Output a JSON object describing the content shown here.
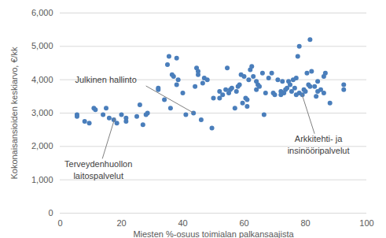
{
  "chart_data": {
    "type": "scatter",
    "x_label": "Miesten %-osuus toimialan palkansaajista",
    "y_label": "Kokonaisansioiden keskiarvo, €/kk",
    "color": "#4a7ebb",
    "marker": "circle",
    "grid": true,
    "xlim": [
      0,
      100
    ],
    "xticks": [
      0,
      20,
      40,
      60,
      80,
      100
    ],
    "ylim": [
      0,
      6000
    ],
    "yticks": [
      0,
      1000,
      2000,
      3000,
      4000,
      5000,
      6000
    ],
    "x": [
      5.5,
      5.5,
      8,
      9.5,
      11,
      11.5,
      14,
      15,
      16,
      17.5,
      18.5,
      20,
      21.5,
      21.5,
      25,
      26,
      27,
      28.5,
      28,
      32,
      32,
      34,
      35,
      35.5,
      36,
      36.5,
      37,
      38,
      38,
      38.5,
      40,
      41,
      43.5,
      44,
      44.5,
      45,
      45,
      46,
      46.5,
      47,
      48,
      49.5,
      50,
      52,
      52,
      53,
      54,
      54.5,
      55,
      55.5,
      56,
      57,
      57.5,
      58,
      58.5,
      59,
      59.5,
      60,
      60.5,
      61,
      61,
      61.5,
      62,
      62.5,
      63,
      64,
      64,
      64.5,
      65,
      66,
      66.5,
      67,
      68,
      69,
      69.5,
      70,
      71,
      72,
      72,
      72.5,
      73,
      73.5,
      74,
      74.5,
      75,
      75.5,
      76,
      76.5,
      77,
      77,
      77.5,
      78,
      78,
      79,
      79.5,
      80,
      80.5,
      81,
      81.5,
      81.5,
      82,
      83,
      83.5,
      84,
      84,
      85,
      86,
      86.5,
      86,
      88,
      92.5,
      92.5
    ],
    "values": [
      2950,
      2900,
      2750,
      2700,
      3150,
      3100,
      2950,
      3150,
      2850,
      2800,
      2700,
      2950,
      2850,
      2750,
      2900,
      3250,
      2650,
      3000,
      2950,
      3700,
      3750,
      3400,
      4450,
      4700,
      3150,
      4150,
      4100,
      4650,
      3850,
      4000,
      3600,
      2950,
      3000,
      3800,
      4350,
      4250,
      4150,
      2800,
      3900,
      4050,
      4000,
      2550,
      3450,
      3450,
      3650,
      3550,
      3700,
      4350,
      3600,
      3700,
      3750,
      3150,
      3650,
      3800,
      3850,
      4150,
      3300,
      4100,
      3450,
      3400,
      3200,
      4000,
      4300,
      4400,
      4100,
      3700,
      3950,
      3850,
      3800,
      4200,
      2950,
      3600,
      4050,
      4200,
      3600,
      3550,
      4000,
      3650,
      3550,
      3950,
      3600,
      3700,
      3750,
      3950,
      3850,
      3650,
      4000,
      3750,
      4050,
      3550,
      4700,
      5000,
      3600,
      3550,
      3700,
      3650,
      4200,
      3850,
      5200,
      3800,
      4250,
      3800,
      3500,
      3950,
      3650,
      3700,
      4100,
      4200,
      3600,
      3300,
      3850,
      3700
    ],
    "annotations": [
      {
        "text": "Julkinen hallinto",
        "x": 43.5,
        "y": 3000
      },
      {
        "text": "Terveydenhuollon\nlaitospalvelut",
        "x": 18,
        "y": 2850
      },
      {
        "text": "Arkkitehti- ja\ninsinööripalvelut",
        "x": 79,
        "y": 3550
      }
    ]
  }
}
